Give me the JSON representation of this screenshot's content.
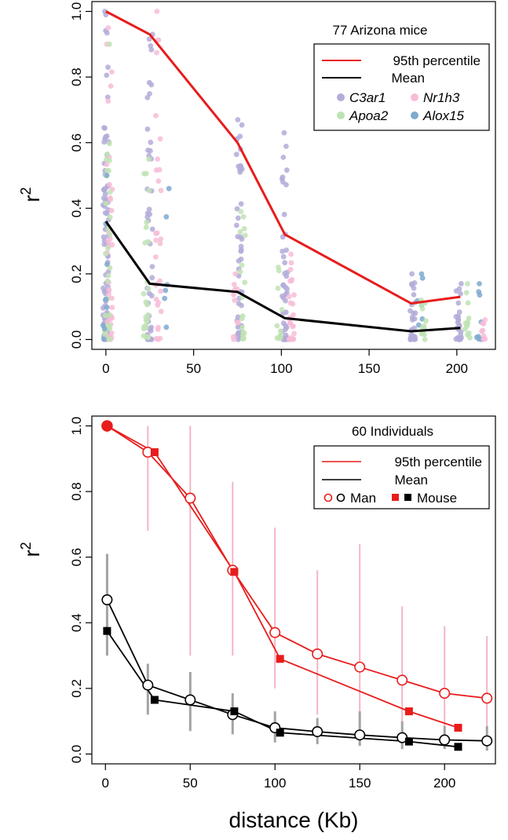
{
  "colors": {
    "pct95": "#e81c1c",
    "mean": "#000000",
    "C3ar1": "#b3acd8",
    "Nr1h3": "#f7bcd7",
    "Apoa2": "#bfe3b4",
    "Alox15": "#7fa9cf",
    "err_red": "#f5b5c5",
    "err_gray": "#a3a3a3"
  },
  "chart_data": [
    {
      "type": "scatter",
      "title": "77 Arizona mice",
      "xlabel": "",
      "ylabel": "r",
      "ylabel_sup": "2",
      "xlim": [
        -8,
        222
      ],
      "ylim": [
        -0.03,
        1.03
      ],
      "xticks": [
        0,
        50,
        100,
        150,
        200
      ],
      "yticks": [
        0.0,
        0.2,
        0.4,
        0.6,
        0.8,
        1.0
      ],
      "xtick_labels": [
        "0",
        "50",
        "100",
        "150",
        "200"
      ],
      "ytick_labels": [
        "0.0",
        "0.2",
        "0.4",
        "0.6",
        "0.8",
        "1.0"
      ],
      "legend": {
        "pct95": "95th percentile",
        "mean": "Mean",
        "genes": [
          "C3ar1",
          "Nr1h3",
          "Apoa2",
          "Alox15"
        ]
      },
      "series": [
        {
          "name": "95th percentile",
          "x": [
            0,
            25,
            75,
            102,
            174,
            202
          ],
          "values": [
            1.0,
            0.93,
            0.6,
            0.32,
            0.11,
            0.13
          ]
        },
        {
          "name": "Mean",
          "x": [
            0,
            25,
            75,
            102,
            174,
            202
          ],
          "values": [
            0.36,
            0.17,
            0.145,
            0.065,
            0.025,
            0.035
          ]
        }
      ],
      "scatter_clusters": [
        {
          "gene": "C3ar1",
          "x": 0,
          "max": 1.0,
          "n": 85
        },
        {
          "gene": "Nr1h3",
          "x": 2,
          "max": 0.95,
          "n": 35
        },
        {
          "gene": "Apoa2",
          "x": 1,
          "max": 0.9,
          "n": 30
        },
        {
          "gene": "Alox15",
          "x": 0,
          "max": 0.5,
          "n": 8
        },
        {
          "gene": "C3ar1",
          "x": 25,
          "max": 0.93,
          "n": 45
        },
        {
          "gene": "Apoa2",
          "x": 23,
          "max": 0.55,
          "n": 25
        },
        {
          "gene": "Nr1h3",
          "x": 30,
          "max": 1.0,
          "n": 30
        },
        {
          "gene": "Alox15",
          "x": 35,
          "max": 0.46,
          "n": 6
        },
        {
          "gene": "C3ar1",
          "x": 76,
          "max": 0.67,
          "n": 45
        },
        {
          "gene": "Apoa2",
          "x": 78,
          "max": 0.39,
          "n": 18
        },
        {
          "gene": "Nr1h3",
          "x": 74,
          "max": 0.2,
          "n": 10
        },
        {
          "gene": "C3ar1",
          "x": 102,
          "max": 0.63,
          "n": 45
        },
        {
          "gene": "Nr1h3",
          "x": 106,
          "max": 0.26,
          "n": 25
        },
        {
          "gene": "Apoa2",
          "x": 99,
          "max": 0.22,
          "n": 12
        },
        {
          "gene": "C3ar1",
          "x": 175,
          "max": 0.2,
          "n": 30
        },
        {
          "gene": "Alox15",
          "x": 179,
          "max": 0.2,
          "n": 6
        },
        {
          "gene": "Apoa2",
          "x": 181,
          "max": 0.12,
          "n": 12
        },
        {
          "gene": "C3ar1",
          "x": 201,
          "max": 0.17,
          "n": 25
        },
        {
          "gene": "Apoa2",
          "x": 206,
          "max": 0.17,
          "n": 12
        },
        {
          "gene": "Alox15",
          "x": 213,
          "max": 0.17,
          "n": 8
        },
        {
          "gene": "Nr1h3",
          "x": 215,
          "max": 0.06,
          "n": 8
        }
      ]
    },
    {
      "type": "line",
      "title": "60 Individuals",
      "xlabel": "distance (Kb)",
      "ylabel": "r",
      "ylabel_sup": "2",
      "xlim": [
        -8,
        230
      ],
      "ylim": [
        -0.03,
        1.03
      ],
      "xticks": [
        0,
        50,
        100,
        150,
        200
      ],
      "yticks": [
        0.0,
        0.2,
        0.4,
        0.6,
        0.8,
        1.0
      ],
      "xtick_labels": [
        "0",
        "50",
        "100",
        "150",
        "200"
      ],
      "ytick_labels": [
        "0.0",
        "0.2",
        "0.4",
        "0.6",
        "0.8",
        "1.0"
      ],
      "legend": {
        "pct95": "95th percentile",
        "mean": "Mean",
        "man": "Man",
        "mouse": "Mouse"
      },
      "series": [
        {
          "name": "Man 95th percentile",
          "marker": "open-circle",
          "color": "red",
          "x": [
            1,
            25,
            50,
            75,
            100,
            125,
            150,
            175,
            200,
            225
          ],
          "values": [
            1.0,
            0.92,
            0.78,
            0.56,
            0.37,
            0.305,
            0.265,
            0.225,
            0.185,
            0.17
          ],
          "err_low": [
            0.98,
            0.68,
            0.3,
            0.3,
            0.2,
            0.12,
            0.1,
            0.06,
            0.05,
            0.06
          ],
          "err_high": [
            1.0,
            1.0,
            1.0,
            0.83,
            0.69,
            0.56,
            0.64,
            0.45,
            0.39,
            0.36
          ]
        },
        {
          "name": "Mouse 95th percentile",
          "marker": "filled-square",
          "color": "red",
          "x": [
            1,
            29,
            76,
            103,
            179,
            208
          ],
          "values": [
            1.0,
            0.92,
            0.555,
            0.29,
            0.13,
            0.08
          ]
        },
        {
          "name": "Man Mean",
          "marker": "open-circle",
          "color": "black",
          "x": [
            1,
            25,
            50,
            75,
            100,
            125,
            150,
            175,
            200,
            225
          ],
          "values": [
            0.47,
            0.21,
            0.165,
            0.12,
            0.08,
            0.068,
            0.058,
            0.05,
            0.043,
            0.04
          ],
          "err_low": [
            0.3,
            0.12,
            0.07,
            0.06,
            0.035,
            0.03,
            0.025,
            0.015,
            0.015,
            0.01
          ],
          "err_high": [
            0.61,
            0.275,
            0.25,
            0.185,
            0.13,
            0.11,
            0.13,
            0.1,
            0.085,
            0.085
          ]
        },
        {
          "name": "Mouse Mean",
          "marker": "filled-square",
          "color": "black",
          "x": [
            1,
            29,
            76,
            103,
            179,
            208
          ],
          "values": [
            0.375,
            0.165,
            0.13,
            0.065,
            0.038,
            0.022
          ]
        }
      ]
    }
  ]
}
